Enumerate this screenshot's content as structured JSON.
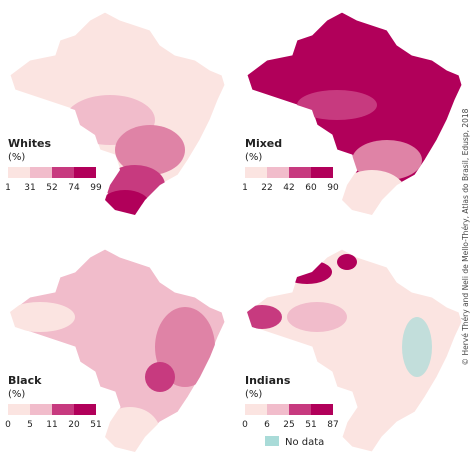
{
  "maps": [
    {
      "title": "Whites",
      "unit": "(%)",
      "breaks": [
        1,
        31,
        52,
        74,
        99
      ],
      "colors": [
        "#fbe4e1",
        "#f1bccb",
        "#df83a6",
        "#c73a7f",
        "#b1005a"
      ]
    },
    {
      "title": "Mixed",
      "unit": "(%)",
      "breaks": [
        1,
        22,
        42,
        60,
        90
      ],
      "colors": [
        "#fbe4e1",
        "#f1bccb",
        "#df83a6",
        "#c73a7f",
        "#b1005a"
      ]
    },
    {
      "title": "Black",
      "unit": "(%)",
      "breaks": [
        0,
        5,
        11,
        20,
        51
      ],
      "colors": [
        "#fbe4e1",
        "#f1bccb",
        "#df83a6",
        "#c73a7f",
        "#b1005a"
      ]
    },
    {
      "title": "Indians",
      "unit": "(%)",
      "breaks": [
        0,
        6,
        25,
        51,
        87
      ],
      "colors": [
        "#fbe4e1",
        "#f1bccb",
        "#df83a6",
        "#c73a7f",
        "#b1005a"
      ],
      "no_data": "No data",
      "no_data_color": "#a9dbd8"
    }
  ],
  "credit": "© Hervé Théry and Neli de Mello-Théry, Atlas do Brasil, Edusp, 2018"
}
